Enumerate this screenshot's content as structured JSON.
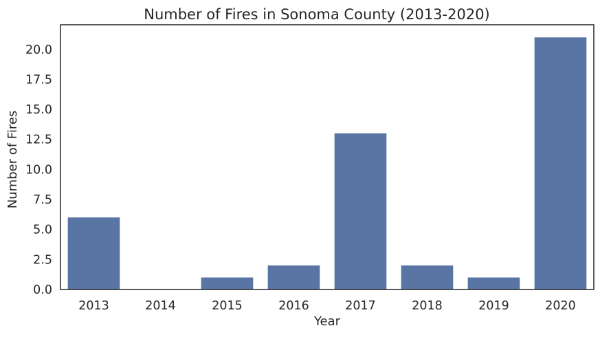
{
  "chart_data": {
    "type": "bar",
    "title": "Number of Fires in Sonoma County (2013-2020)",
    "xlabel": "Year",
    "ylabel": "Number of Fires",
    "categories": [
      "2013",
      "2014",
      "2015",
      "2016",
      "2017",
      "2018",
      "2019",
      "2020"
    ],
    "values": [
      6,
      0,
      1,
      2,
      13,
      2,
      1,
      21
    ],
    "ylim": [
      0,
      22.05
    ],
    "yticks": [
      "0.0",
      "2.5",
      "5.0",
      "7.5",
      "10.0",
      "12.5",
      "15.0",
      "17.5",
      "20.0"
    ],
    "grid": false,
    "legend": "none",
    "bar_color": "#5975a4"
  }
}
